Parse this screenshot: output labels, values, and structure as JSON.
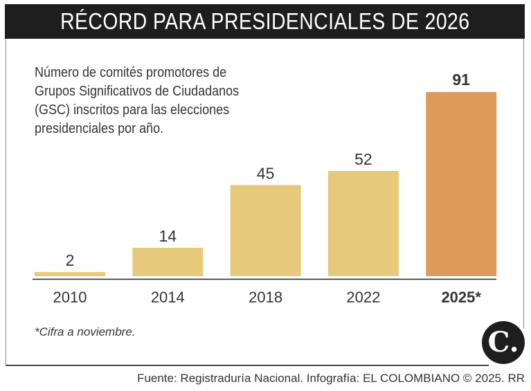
{
  "title": "RÉCORD PARA PRESIDENCIALES DE 2026",
  "subtitle_lines": [
    "Número de comités promotores de",
    "Grupos Significativos de Ciudadanos",
    "(GSC) inscritos para las elecciones",
    "presidenciales por año."
  ],
  "note": "*Cifra a noviembre.",
  "source": "Fuente: Registraduría Nacional. Infografía: EL COLOMBIANO © 2025. RR",
  "logo_text": "C.",
  "colors": {
    "bar": "#E6C97A",
    "highlight": "#DC9A5B",
    "title_bg": "#1E1E1E"
  },
  "chart_data": {
    "type": "bar",
    "categories": [
      "2010",
      "2014",
      "2018",
      "2022",
      "2025*"
    ],
    "values": [
      2,
      14,
      45,
      52,
      91
    ],
    "highlight": "2025*",
    "title": "",
    "xlabel": "",
    "ylabel": "",
    "ylim": [
      0,
      91
    ],
    "grid": false
  }
}
